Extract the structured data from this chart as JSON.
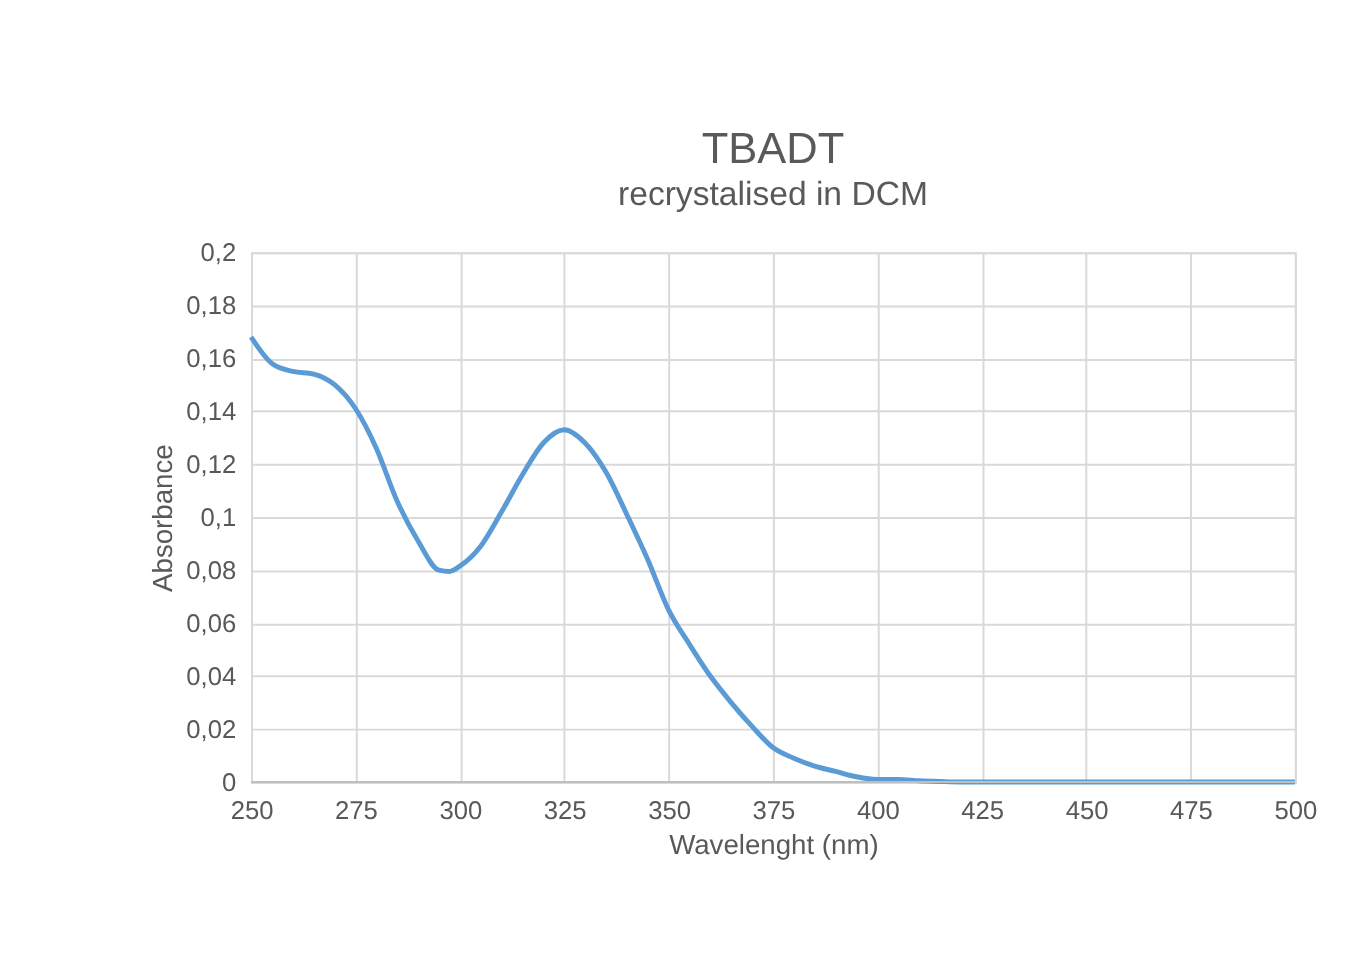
{
  "chart_data": {
    "type": "line",
    "title": "TBADT",
    "subtitle": "recrystalised in DCM",
    "xlabel": "Wavelenght (nm)",
    "ylabel": "Absorbance",
    "x": [
      250,
      255,
      260,
      265,
      270,
      275,
      280,
      285,
      290,
      295,
      297.5,
      300,
      305,
      310,
      315,
      320,
      325,
      330,
      335,
      340,
      345,
      350,
      355,
      360,
      365,
      370,
      375,
      380,
      385,
      390,
      395,
      400,
      405,
      410,
      415,
      420,
      450,
      500
    ],
    "series": [
      {
        "color": "#5b9bd5",
        "values": [
          0.168,
          0.158,
          0.155,
          0.154,
          0.15,
          0.141,
          0.126,
          0.106,
          0.091,
          0.08,
          0.0795,
          0.0815,
          0.089,
          0.102,
          0.116,
          0.128,
          0.133,
          0.128,
          0.117,
          0.101,
          0.084,
          0.065,
          0.052,
          0.04,
          0.03,
          0.021,
          0.013,
          0.009,
          0.006,
          0.004,
          0.002,
          0.001,
          0.001,
          0.0005,
          0.0002,
          0,
          0,
          0
        ]
      }
    ],
    "xlim": [
      250,
      500
    ],
    "xticks": [
      250,
      275,
      300,
      325,
      350,
      375,
      400,
      425,
      450,
      475,
      500
    ],
    "ylim": [
      0,
      0.2
    ],
    "yticks": [
      {
        "value": 0,
        "label": "0"
      },
      {
        "value": 0.02,
        "label": "0,02"
      },
      {
        "value": 0.04,
        "label": "0,04"
      },
      {
        "value": 0.06,
        "label": "0,06"
      },
      {
        "value": 0.08,
        "label": "0,08"
      },
      {
        "value": 0.1,
        "label": "0,1"
      },
      {
        "value": 0.12,
        "label": "0,12"
      },
      {
        "value": 0.14,
        "label": "0,14"
      },
      {
        "value": 0.16,
        "label": "0,16"
      },
      {
        "value": 0.18,
        "label": "0,18"
      },
      {
        "value": 0.2,
        "label": "0,2"
      }
    ],
    "grid": true,
    "marker": "none",
    "line_style": "solid"
  }
}
